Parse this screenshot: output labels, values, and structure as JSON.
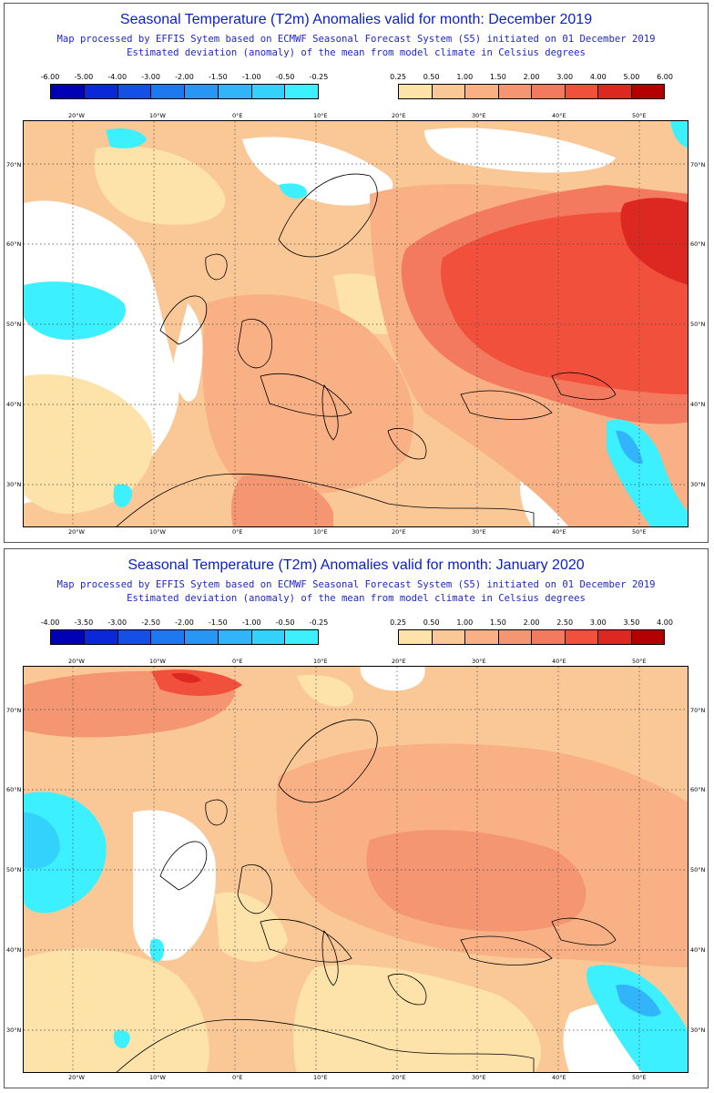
{
  "panels": [
    {
      "title": "Seasonal Temperature (T2m) Anomalies valid for month: December 2019",
      "subtitle_1": "Map processed by EFFIS Sytem based on ECMWF Seasonal Forecast System (S5) initiated on 01 December 2019",
      "subtitle_2": "Estimated deviation (anomaly) of the mean from model climate in Celsius degrees",
      "legend_negative": {
        "ticks": [
          "-6.00",
          "-5.00",
          "-4.00",
          "-3.00",
          "-2.00",
          "-1.50",
          "-1.00",
          "-0.50",
          "-0.25"
        ],
        "colors": [
          "#0000b4",
          "#0a28d8",
          "#1450e6",
          "#1e78f0",
          "#2896f5",
          "#32b4fa",
          "#32d2fc",
          "#3cf0ff"
        ]
      },
      "legend_positive": {
        "ticks": [
          "0.25",
          "0.50",
          "1.00",
          "1.50",
          "2.00",
          "3.00",
          "4.00",
          "5.00",
          "6.00"
        ],
        "colors": [
          "#fde2aa",
          "#fac896",
          "#f8b084",
          "#f59672",
          "#f37a5e",
          "#f0503c",
          "#dc2820",
          "#b40000"
        ]
      },
      "lon_labels": [
        "20°W",
        "10°W",
        "0°E",
        "10°E",
        "20°E",
        "30°E",
        "40°E",
        "50°E"
      ],
      "lat_labels": [
        "70°N",
        "60°N",
        "50°N",
        "40°N",
        "30°N"
      ]
    },
    {
      "title": "Seasonal Temperature (T2m) Anomalies valid for month: January 2020",
      "subtitle_1": "Map processed by EFFIS Sytem based on ECMWF Seasonal Forecast System (S5) initiated on 01 December 2019",
      "subtitle_2": "Estimated deviation (anomaly) of the mean from model climate in Celsius degrees",
      "legend_negative": {
        "ticks": [
          "-4.00",
          "-3.50",
          "-3.00",
          "-2.50",
          "-2.00",
          "-1.50",
          "-1.00",
          "-0.50",
          "-0.25"
        ],
        "colors": [
          "#0000b4",
          "#0a28d8",
          "#1450e6",
          "#1e78f0",
          "#2896f5",
          "#32b4fa",
          "#32d2fc",
          "#3cf0ff"
        ]
      },
      "legend_positive": {
        "ticks": [
          "0.25",
          "0.50",
          "1.00",
          "1.50",
          "2.00",
          "2.50",
          "3.00",
          "3.50",
          "4.00"
        ],
        "colors": [
          "#fde2aa",
          "#fac896",
          "#f8b084",
          "#f59672",
          "#f37a5e",
          "#f0503c",
          "#dc2820",
          "#b40000"
        ]
      },
      "lon_labels": [
        "20°W",
        "10°W",
        "0°E",
        "10°E",
        "20°E",
        "30°E",
        "40°E",
        "50°E"
      ],
      "lat_labels": [
        "70°N",
        "60°N",
        "50°N",
        "40°N",
        "30°N"
      ]
    }
  ]
}
